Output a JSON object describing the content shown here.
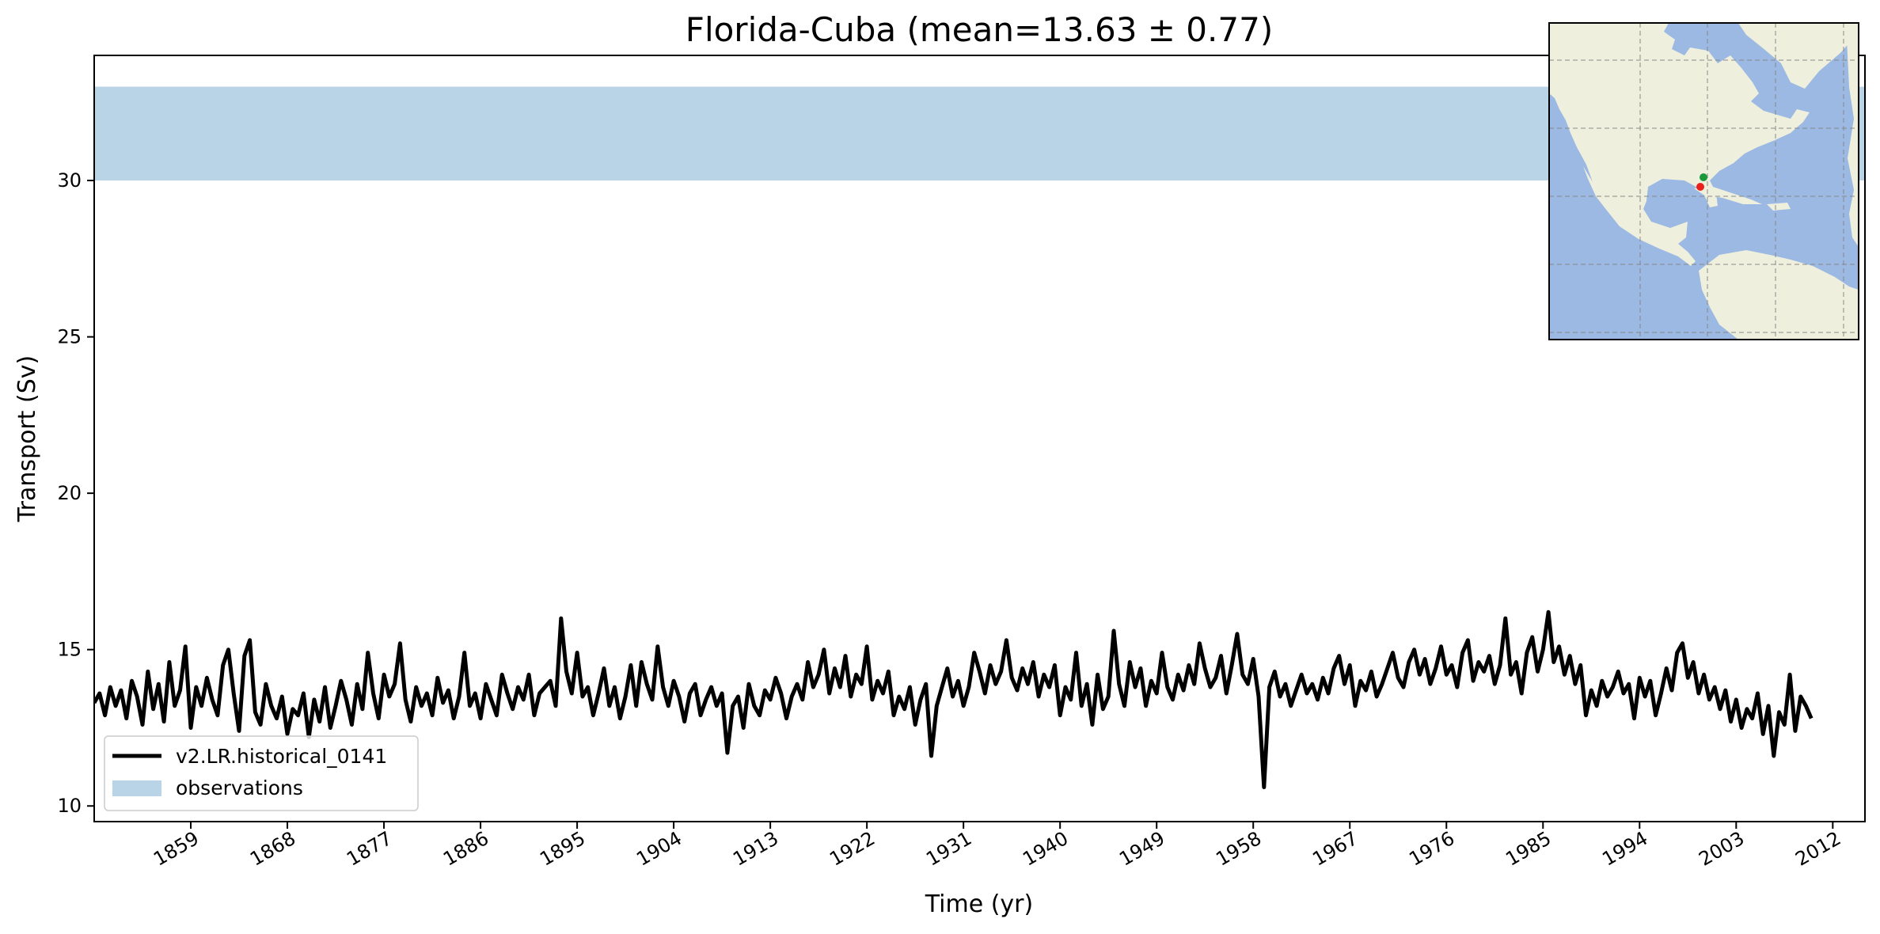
{
  "chart_data": {
    "type": "line",
    "title": "Florida-Cuba (mean=13.63 ± 0.77)",
    "xlabel": "Time (yr)",
    "ylabel": "Transport (Sv)",
    "xlim": [
      1850,
      2015
    ],
    "ylim": [
      9.5,
      34
    ],
    "x_ticks": [
      1859,
      1868,
      1877,
      1886,
      1895,
      1904,
      1913,
      1922,
      1931,
      1940,
      1949,
      1958,
      1967,
      1976,
      1985,
      1994,
      2003,
      2012
    ],
    "y_ticks": [
      10,
      15,
      20,
      25,
      30
    ],
    "grid": false,
    "legend_position": "lower-left",
    "observation_band": {
      "name": "observations",
      "ymin": 30,
      "ymax": 33,
      "color": "#b9d4e7"
    },
    "series": [
      {
        "name": "v2.LR.historical_0141",
        "color": "#000000",
        "x_start": 1850,
        "x_step": 0.5,
        "values": [
          13.3,
          13.6,
          12.9,
          13.8,
          13.2,
          13.7,
          12.8,
          14.0,
          13.5,
          12.6,
          14.3,
          13.1,
          13.9,
          12.7,
          14.6,
          13.2,
          13.7,
          15.1,
          12.5,
          13.8,
          13.2,
          14.1,
          13.4,
          12.9,
          14.5,
          15.0,
          13.6,
          12.4,
          14.8,
          15.3,
          13.0,
          12.6,
          13.9,
          13.2,
          12.8,
          13.5,
          12.3,
          13.1,
          12.9,
          13.6,
          12.2,
          13.4,
          12.7,
          13.8,
          12.5,
          13.2,
          14.0,
          13.4,
          12.6,
          13.9,
          13.1,
          14.9,
          13.6,
          12.8,
          14.2,
          13.5,
          13.9,
          15.2,
          13.4,
          12.7,
          13.8,
          13.2,
          13.6,
          12.9,
          14.1,
          13.3,
          13.7,
          12.8,
          13.5,
          14.9,
          13.2,
          13.6,
          12.8,
          13.9,
          13.4,
          12.9,
          14.2,
          13.6,
          13.1,
          13.8,
          13.4,
          14.2,
          12.9,
          13.6,
          13.8,
          14.0,
          13.2,
          16.0,
          14.3,
          13.6,
          14.9,
          13.5,
          13.8,
          12.9,
          13.6,
          14.4,
          13.2,
          13.8,
          12.8,
          13.5,
          14.5,
          13.2,
          14.6,
          13.9,
          13.4,
          15.1,
          13.8,
          13.2,
          14.0,
          13.5,
          12.7,
          13.6,
          13.9,
          12.9,
          13.4,
          13.8,
          13.2,
          13.6,
          11.7,
          13.2,
          13.5,
          12.5,
          13.9,
          13.2,
          12.9,
          13.7,
          13.4,
          14.1,
          13.6,
          12.8,
          13.5,
          13.9,
          13.4,
          14.6,
          13.8,
          14.2,
          15.0,
          13.6,
          14.4,
          13.8,
          14.8,
          13.5,
          14.2,
          13.9,
          15.1,
          13.4,
          14.0,
          13.6,
          14.3,
          12.9,
          13.5,
          13.1,
          13.8,
          12.6,
          13.4,
          13.9,
          11.6,
          13.2,
          13.8,
          14.4,
          13.5,
          14.0,
          13.2,
          13.8,
          14.9,
          14.3,
          13.6,
          14.5,
          13.9,
          14.3,
          15.3,
          14.1,
          13.7,
          14.4,
          13.9,
          14.6,
          13.5,
          14.2,
          13.8,
          14.5,
          12.9,
          13.8,
          13.4,
          14.9,
          13.2,
          13.9,
          12.6,
          14.2,
          13.1,
          13.5,
          15.6,
          13.9,
          13.2,
          14.6,
          13.8,
          14.4,
          13.2,
          14.0,
          13.6,
          14.9,
          13.8,
          13.4,
          14.2,
          13.7,
          14.5,
          13.9,
          15.2,
          14.4,
          13.8,
          14.1,
          14.8,
          13.6,
          14.5,
          15.5,
          14.2,
          13.9,
          14.7,
          13.5,
          10.6,
          13.8,
          14.3,
          13.5,
          13.9,
          13.2,
          13.7,
          14.2,
          13.6,
          13.9,
          13.4,
          14.1,
          13.6,
          14.4,
          14.8,
          13.9,
          14.5,
          13.2,
          14.0,
          13.7,
          14.3,
          13.5,
          13.9,
          14.4,
          14.9,
          14.1,
          13.8,
          14.6,
          15.0,
          14.2,
          14.7,
          13.9,
          14.4,
          15.1,
          14.2,
          14.5,
          13.8,
          14.9,
          15.3,
          14.0,
          14.6,
          14.3,
          14.8,
          13.9,
          14.5,
          16.0,
          14.2,
          14.6,
          13.6,
          14.9,
          15.4,
          14.3,
          15.0,
          16.2,
          14.6,
          15.1,
          14.2,
          14.8,
          13.9,
          14.5,
          12.9,
          13.7,
          13.2,
          14.0,
          13.5,
          13.8,
          14.3,
          13.6,
          13.9,
          12.8,
          14.1,
          13.5,
          14.0,
          12.9,
          13.6,
          14.4,
          13.7,
          14.9,
          15.2,
          14.1,
          14.6,
          13.6,
          14.2,
          13.4,
          13.8,
          13.1,
          13.7,
          12.7,
          13.4,
          12.5,
          13.1,
          12.8,
          13.6,
          12.3,
          13.2,
          11.6,
          13.0,
          12.6,
          14.2,
          12.4,
          13.5,
          13.2,
          12.8
        ]
      }
    ],
    "inset_map": {
      "land_color": "#efefde",
      "ocean_color": "#9bb9e2",
      "markers": [
        {
          "color": "#1a9a3a"
        },
        {
          "color": "#e8221a"
        }
      ]
    }
  }
}
